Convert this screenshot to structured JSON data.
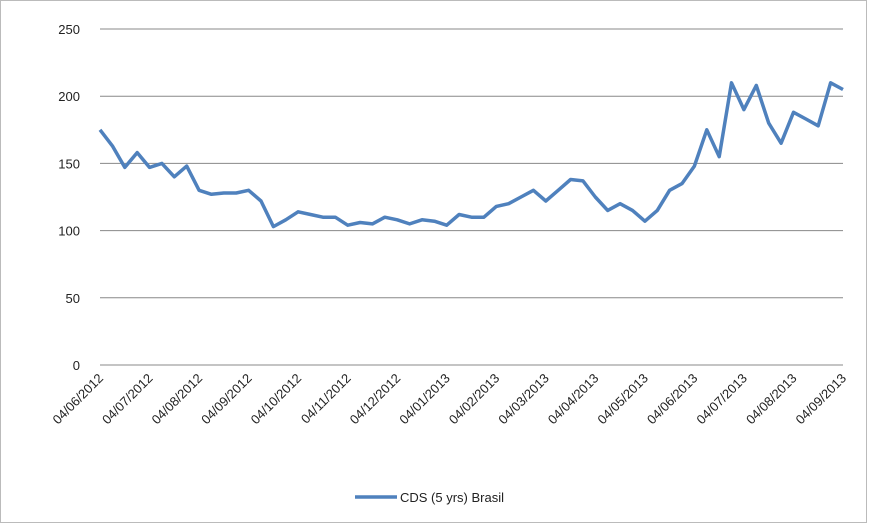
{
  "chart_data": {
    "type": "line",
    "categories": [
      "04/06/2012",
      null,
      null,
      null,
      "04/07/2012",
      null,
      null,
      null,
      "04/08/2012",
      null,
      null,
      null,
      "04/09/2012",
      null,
      null,
      null,
      "04/10/2012",
      null,
      null,
      null,
      "04/11/2012",
      null,
      null,
      null,
      "04/12/2012",
      null,
      null,
      null,
      "04/01/2013",
      null,
      null,
      null,
      "04/02/2013",
      null,
      null,
      null,
      "04/03/2013",
      null,
      null,
      null,
      "04/04/2013",
      null,
      null,
      null,
      "04/05/2013",
      null,
      null,
      null,
      "04/06/2013",
      null,
      null,
      null,
      "04/07/2013",
      null,
      null,
      null,
      "04/08/2013",
      null,
      null,
      null,
      "04/09/2013"
    ],
    "series": [
      {
        "name": "CDS (5 yrs) Brasil",
        "color": "#4f81bd",
        "values": [
          175,
          163,
          147,
          158,
          147,
          150,
          140,
          148,
          130,
          127,
          128,
          128,
          130,
          122,
          103,
          108,
          114,
          112,
          110,
          110,
          104,
          106,
          105,
          110,
          108,
          105,
          108,
          107,
          104,
          112,
          110,
          110,
          118,
          120,
          125,
          130,
          122,
          130,
          138,
          137,
          125,
          115,
          120,
          115,
          107,
          115,
          130,
          135,
          148,
          175,
          155,
          210,
          190,
          208,
          180,
          165,
          188,
          183,
          178,
          210,
          205
        ]
      }
    ],
    "ylim": [
      0,
      250
    ],
    "yticks": [
      0,
      50,
      100,
      150,
      200,
      250
    ],
    "grid": true,
    "legend": "bottom"
  }
}
